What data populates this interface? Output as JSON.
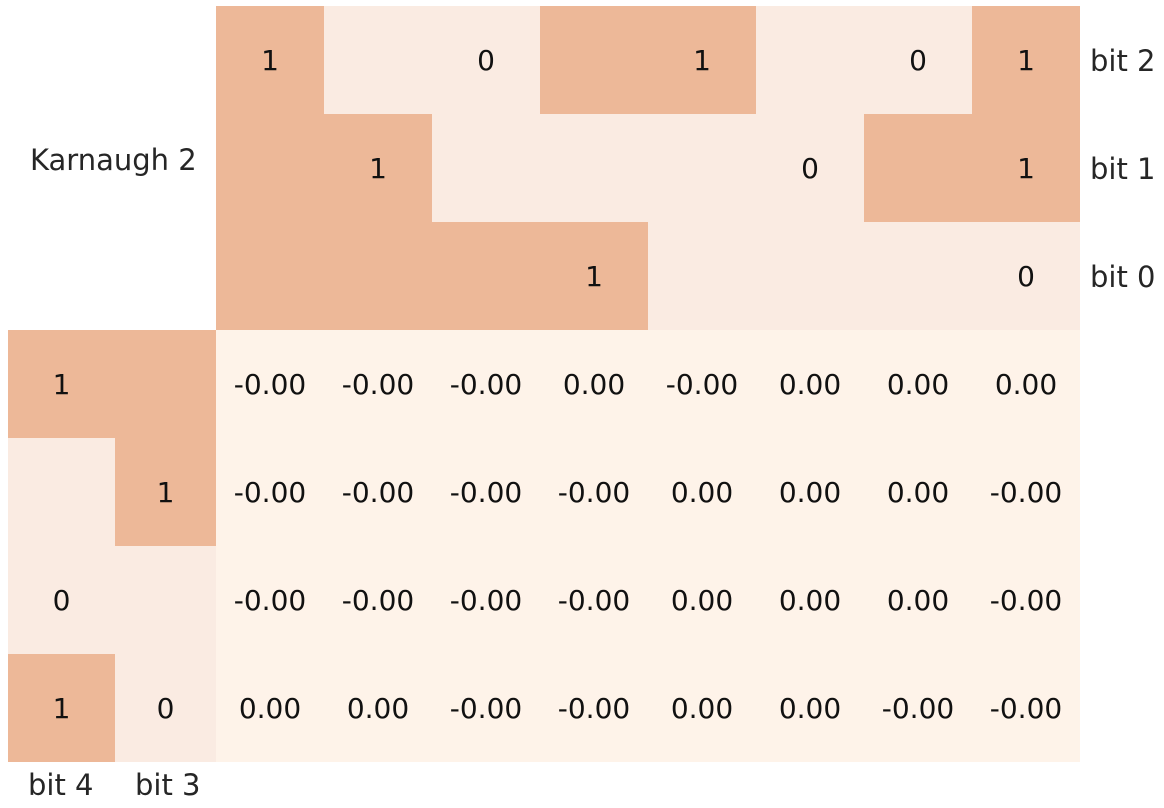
{
  "title": "Karnaugh 2",
  "column_bits": [
    {
      "label": "bit 2",
      "cells": [
        1,
        0,
        0,
        1,
        1,
        0,
        0,
        1
      ]
    },
    {
      "label": "bit 1",
      "cells": [
        1,
        1,
        0,
        0,
        0,
        0,
        1,
        1
      ]
    },
    {
      "label": "bit 0",
      "cells": [
        1,
        1,
        1,
        1,
        0,
        0,
        0,
        0
      ]
    }
  ],
  "row_bits": [
    {
      "label": "bit 4",
      "cells": [
        1,
        0,
        0,
        1
      ]
    },
    {
      "label": "bit 3",
      "cells": [
        1,
        1,
        0,
        0
      ]
    }
  ],
  "table": {
    "rows": [
      [
        "-0.00",
        "-0.00",
        "-0.00",
        "0.00",
        "-0.00",
        "0.00",
        "0.00",
        "0.00"
      ],
      [
        "-0.00",
        "-0.00",
        "-0.00",
        "-0.00",
        "0.00",
        "0.00",
        "0.00",
        "-0.00"
      ],
      [
        "-0.00",
        "-0.00",
        "-0.00",
        "-0.00",
        "0.00",
        "0.00",
        "0.00",
        "-0.00"
      ],
      [
        "0.00",
        "0.00",
        "-0.00",
        "-0.00",
        "0.00",
        "0.00",
        "-0.00",
        "-0.00"
      ]
    ]
  }
}
